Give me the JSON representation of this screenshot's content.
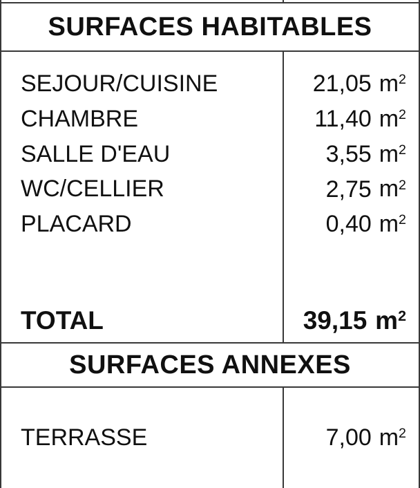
{
  "colors": {
    "background": "#ffffff",
    "border": "#383838",
    "text": "#101010"
  },
  "unit": {
    "base": "m",
    "exponent": "2"
  },
  "sections": [
    {
      "title": "SURFACES HABITABLES",
      "rows": [
        {
          "label": "SEJOUR/CUISINE",
          "value": "21,05"
        },
        {
          "label": "CHAMBRE",
          "value": "11,40"
        },
        {
          "label": "SALLE D'EAU",
          "value": "3,55"
        },
        {
          "label": "WC/CELLIER",
          "value": "2,75"
        },
        {
          "label": "PLACARD",
          "value": "0,40"
        }
      ],
      "total": {
        "label": "TOTAL",
        "value": "39,15"
      }
    },
    {
      "title": "SURFACES ANNEXES",
      "rows": [
        {
          "label": "TERRASSE",
          "value": "7,00"
        }
      ]
    }
  ]
}
